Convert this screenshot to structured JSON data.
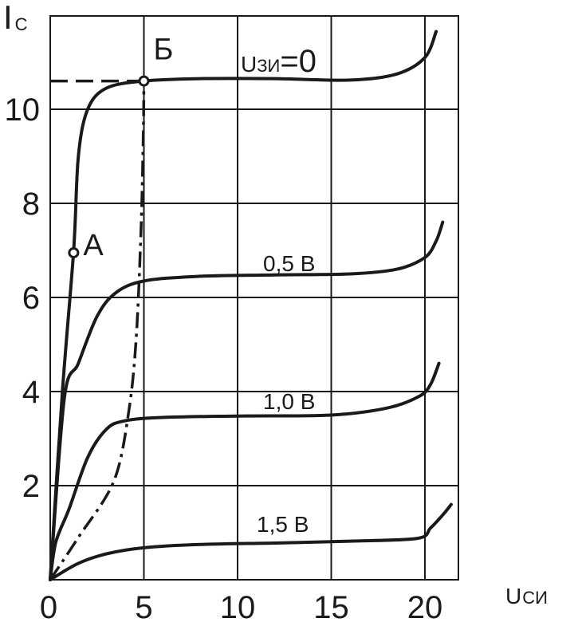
{
  "chart_data": {
    "type": "line",
    "ylabel": {
      "main": "I",
      "sub": "С"
    },
    "xlabel": {
      "main": "U",
      "sub": "СИ"
    },
    "xlim": [
      0,
      22
    ],
    "ylim": [
      0,
      12
    ],
    "x_ticks": [
      0,
      5,
      10,
      15,
      20
    ],
    "y_ticks": [
      2,
      4,
      6,
      8,
      10
    ],
    "grid": true,
    "series": [
      {
        "name_main": "U",
        "name_sub": "ЗИ",
        "name_value": "=0",
        "points": [
          [
            0,
            0
          ],
          [
            0.65,
            4
          ],
          [
            1.25,
            7
          ],
          [
            1.5,
            9
          ],
          [
            2.0,
            10.0
          ],
          [
            3.0,
            10.45
          ],
          [
            5.0,
            10.6
          ],
          [
            8,
            10.65
          ],
          [
            12,
            10.65
          ],
          [
            16,
            10.62
          ],
          [
            18.5,
            10.75
          ],
          [
            20.0,
            11.1
          ],
          [
            20.6,
            11.65
          ]
        ]
      },
      {
        "name": "0,5 В",
        "points": [
          [
            0,
            0
          ],
          [
            0.75,
            3.85
          ],
          [
            1.5,
            4.6
          ],
          [
            2.5,
            5.6
          ],
          [
            3.5,
            6.1
          ],
          [
            5.0,
            6.35
          ],
          [
            8,
            6.45
          ],
          [
            12,
            6.48
          ],
          [
            16,
            6.5
          ],
          [
            18.5,
            6.6
          ],
          [
            20.0,
            6.85
          ],
          [
            20.6,
            7.2
          ],
          [
            20.95,
            7.6
          ]
        ]
      },
      {
        "name": "1,0 В",
        "points": [
          [
            0,
            0
          ],
          [
            0.3,
            0.8
          ],
          [
            1.0,
            1.5
          ],
          [
            2.0,
            2.6
          ],
          [
            3.0,
            3.2
          ],
          [
            4.0,
            3.38
          ],
          [
            6.0,
            3.45
          ],
          [
            10,
            3.48
          ],
          [
            15,
            3.5
          ],
          [
            18,
            3.65
          ],
          [
            19.7,
            3.9
          ],
          [
            20.3,
            4.15
          ],
          [
            20.75,
            4.6
          ]
        ]
      },
      {
        "name": "1,5 В",
        "points": [
          [
            0,
            0
          ],
          [
            1.5,
            0.35
          ],
          [
            3.0,
            0.55
          ],
          [
            5.0,
            0.68
          ],
          [
            8,
            0.75
          ],
          [
            12,
            0.78
          ],
          [
            16,
            0.82
          ],
          [
            19.6,
            0.88
          ],
          [
            20.3,
            1.1
          ],
          [
            21.0,
            1.4
          ],
          [
            21.4,
            1.6
          ]
        ]
      }
    ],
    "saturation_boundary": [
      [
        0,
        0
      ],
      [
        1.5,
        0.9
      ],
      [
        3.4,
        2.1
      ],
      [
        4.2,
        3.6
      ],
      [
        4.6,
        5.2
      ],
      [
        4.85,
        7.5
      ],
      [
        4.97,
        9.5
      ],
      [
        5.0,
        10.6
      ]
    ],
    "dashed_guide": [
      [
        0,
        10.6
      ],
      [
        5.0,
        10.6
      ]
    ],
    "points": [
      {
        "label": "А",
        "x": 1.25,
        "y": 6.95
      },
      {
        "label": "Б",
        "x": 5.0,
        "y": 10.6
      }
    ]
  }
}
